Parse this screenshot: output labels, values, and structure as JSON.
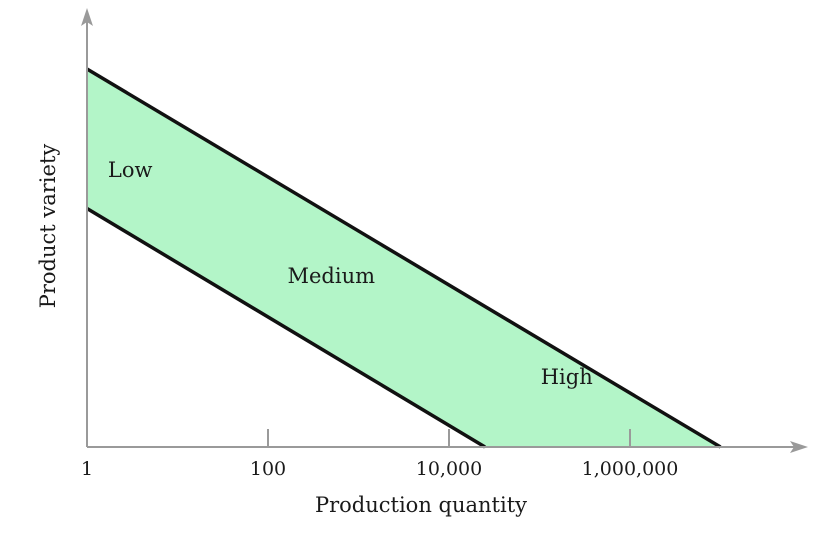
{
  "chart_data": {
    "type": "area",
    "title": "",
    "xlabel": "Production quantity",
    "ylabel": "Product variety",
    "x_scale": "log",
    "xlim": [
      1,
      100000000
    ],
    "x_ticks": [
      1,
      100,
      10000,
      1000000
    ],
    "x_tick_labels": [
      "1",
      "100",
      "10,000",
      "1,000,000"
    ],
    "y_ticks": [],
    "grid": false,
    "band": {
      "fill_color": "#b3f5c8",
      "line_color": "#111111",
      "upper_boundary": [
        [
          1,
          0.84
        ],
        [
          10000000,
          0.0
        ]
      ],
      "lower_boundary": [
        [
          1,
          0.53
        ],
        [
          25000,
          0.0
        ]
      ]
    },
    "region_labels": [
      {
        "text": "Low",
        "x": 3,
        "y": 0.6
      },
      {
        "text": "Medium",
        "x": 500,
        "y": 0.365
      },
      {
        "text": "High",
        "x": 200000,
        "y": 0.14
      }
    ],
    "axis_color": "#9a9a9a"
  }
}
